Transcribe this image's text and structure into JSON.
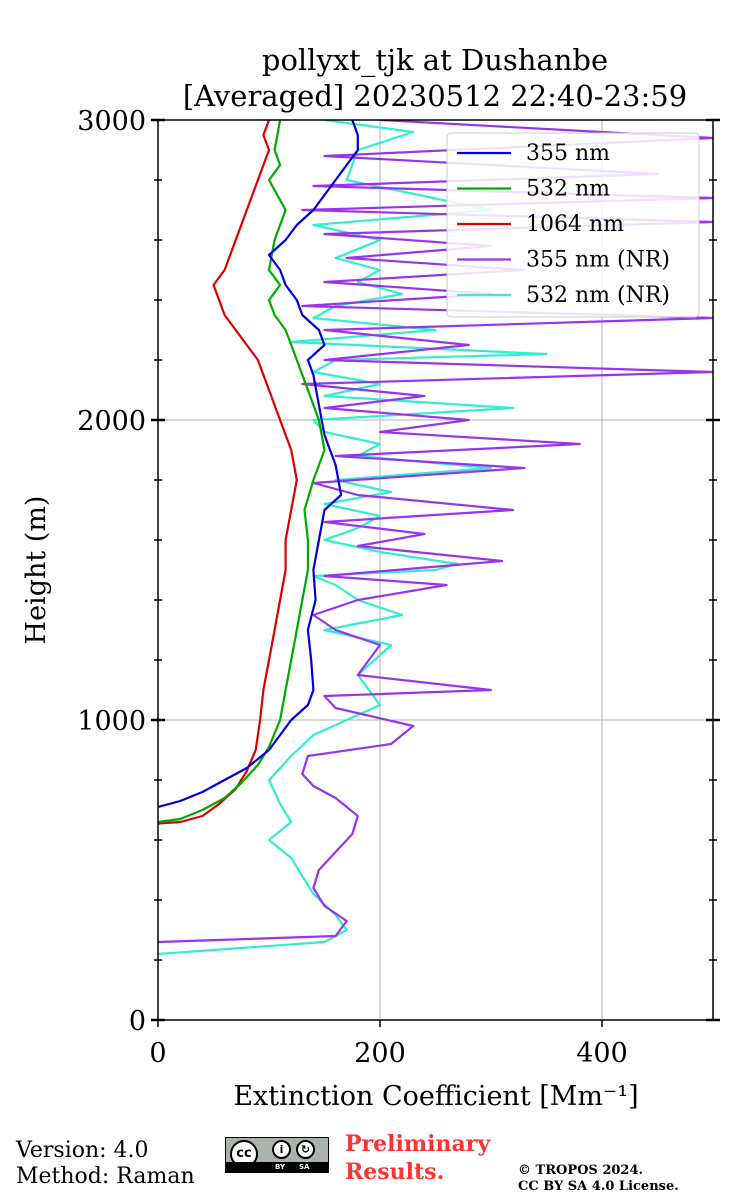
{
  "chart_data": {
    "type": "line",
    "title": "pollyxt_tjk at Dushanbe",
    "subtitle": "[Averaged] 20230512 22:40-23:59",
    "xlabel": "Extinction Coefficient [Mm⁻¹]",
    "ylabel": "Height (m)",
    "xlim": [
      0,
      500
    ],
    "ylim": [
      0,
      3000
    ],
    "xticks": [
      0,
      200,
      400
    ],
    "yticks": [
      0,
      1000,
      2000,
      3000
    ],
    "grid": true,
    "legend_position": "top-right",
    "series": [
      {
        "name": "355 nm",
        "color": "#0000dd",
        "x": [
          0,
          20,
          40,
          60,
          80,
          100,
          110,
          120,
          135,
          140,
          138,
          135,
          142,
          140,
          145,
          150,
          165,
          160,
          150,
          145,
          140,
          135,
          150,
          145,
          130,
          125,
          115,
          110,
          100,
          115,
          125,
          140,
          150,
          160,
          170,
          180,
          180,
          175
        ],
        "y": [
          710,
          730,
          760,
          800,
          840,
          900,
          950,
          1000,
          1050,
          1100,
          1200,
          1300,
          1400,
          1500,
          1600,
          1700,
          1750,
          1850,
          1950,
          2050,
          2150,
          2200,
          2250,
          2300,
          2350,
          2400,
          2450,
          2500,
          2550,
          2600,
          2650,
          2700,
          2750,
          2800,
          2850,
          2900,
          2950,
          3000
        ]
      },
      {
        "name": "532 nm",
        "color": "#00aa00",
        "x": [
          0,
          20,
          40,
          60,
          75,
          90,
          100,
          110,
          115,
          120,
          125,
          130,
          135,
          135,
          132,
          140,
          150,
          145,
          135,
          125,
          115,
          105,
          100,
          110,
          100,
          105,
          115,
          100,
          110,
          105,
          110
        ],
        "y": [
          660,
          670,
          700,
          740,
          790,
          850,
          910,
          1000,
          1100,
          1200,
          1300,
          1400,
          1500,
          1600,
          1700,
          1800,
          1900,
          2000,
          2100,
          2200,
          2300,
          2350,
          2400,
          2450,
          2500,
          2600,
          2700,
          2800,
          2850,
          2900,
          3000
        ]
      },
      {
        "name": "1064 nm",
        "color": "#dd0000",
        "x": [
          0,
          20,
          40,
          55,
          70,
          80,
          88,
          92,
          95,
          100,
          105,
          110,
          115,
          115,
          120,
          125,
          120,
          110,
          100,
          90,
          80,
          70,
          60,
          55,
          50,
          60,
          70,
          80,
          90,
          100,
          95,
          100
        ],
        "y": [
          655,
          660,
          680,
          720,
          770,
          830,
          900,
          1000,
          1100,
          1200,
          1300,
          1400,
          1500,
          1600,
          1700,
          1800,
          1900,
          2000,
          2100,
          2200,
          2250,
          2300,
          2350,
          2400,
          2450,
          2500,
          2600,
          2700,
          2800,
          2900,
          2950,
          3000
        ]
      },
      {
        "name": "355 nm (NR)",
        "color": "#9933ee",
        "x": [
          0,
          160,
          170,
          150,
          140,
          145,
          160,
          175,
          180,
          160,
          140,
          130,
          135,
          210,
          230,
          160,
          150,
          300,
          180,
          190,
          200,
          160,
          140,
          180,
          260,
          150,
          310,
          180,
          240,
          150,
          320,
          180,
          140,
          330,
          160,
          380,
          200,
          280,
          150,
          240,
          130,
          500,
          150,
          280,
          150,
          500,
          130,
          300,
          150,
          330,
          170,
          300,
          150,
          500,
          130,
          500,
          140,
          450,
          150,
          500,
          200
        ],
        "y": [
          260,
          280,
          330,
          380,
          440,
          500,
          560,
          620,
          680,
          740,
          780,
          820,
          880,
          920,
          980,
          1040,
          1080,
          1100,
          1150,
          1200,
          1250,
          1300,
          1350,
          1400,
          1450,
          1480,
          1530,
          1580,
          1620,
          1660,
          1700,
          1750,
          1790,
          1840,
          1880,
          1920,
          1960,
          2000,
          2040,
          2080,
          2120,
          2160,
          2200,
          2250,
          2300,
          2340,
          2380,
          2420,
          2460,
          2500,
          2540,
          2580,
          2620,
          2660,
          2700,
          2740,
          2780,
          2820,
          2880,
          2940,
          3000
        ]
      },
      {
        "name": "532 nm (NR)",
        "color": "#33eecc",
        "x": [
          0,
          150,
          170,
          160,
          140,
          130,
          120,
          100,
          120,
          110,
          100,
          120,
          140,
          200,
          180,
          210,
          150,
          220,
          180,
          160,
          140,
          250,
          270,
          200,
          150,
          180,
          200,
          150,
          210,
          160,
          300,
          180,
          200,
          150,
          140,
          320,
          150,
          200,
          140,
          160,
          350,
          120,
          250,
          140,
          160,
          220,
          180,
          200,
          160,
          200,
          140,
          300,
          170,
          180,
          230,
          150
        ],
        "y": [
          220,
          260,
          300,
          350,
          420,
          480,
          540,
          600,
          660,
          720,
          800,
          880,
          950,
          1050,
          1150,
          1250,
          1300,
          1350,
          1400,
          1450,
          1480,
          1500,
          1520,
          1560,
          1600,
          1640,
          1680,
          1720,
          1760,
          1800,
          1840,
          1880,
          1920,
          1960,
          2000,
          2040,
          2080,
          2120,
          2160,
          2200,
          2220,
          2260,
          2300,
          2340,
          2380,
          2420,
          2460,
          2500,
          2540,
          2600,
          2650,
          2700,
          2800,
          2900,
          2960,
          3000
        ]
      }
    ]
  },
  "footer": {
    "version": "Version: 4.0",
    "method": "Method: Raman",
    "prelim_line1": "Preliminary",
    "prelim_line2": "Results.",
    "copyright_line1": "© TROPOS 2024.",
    "copyright_line2": "CC BY SA 4.0 License.",
    "cc_label": "cc",
    "cc_by": "BY",
    "cc_sa": "SA",
    "cc_i": "i",
    "cc_s": "↻"
  }
}
